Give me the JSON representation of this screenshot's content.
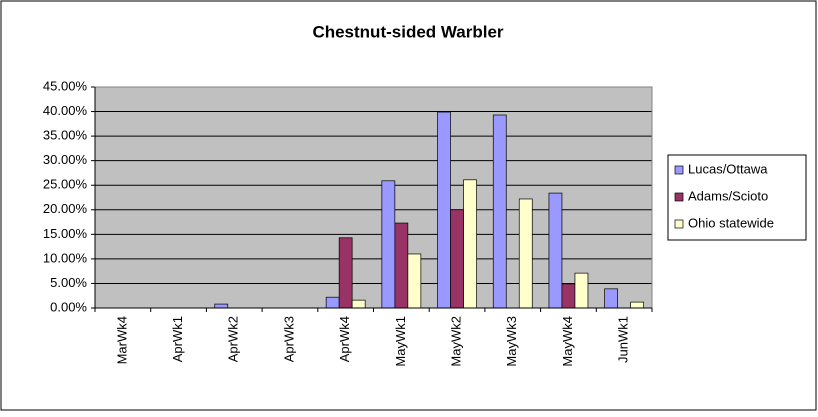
{
  "chart_data": {
    "type": "bar",
    "title": "Chestnut-sided Warbler",
    "categories": [
      "MarWk4",
      "AprWk1",
      "AprWk2",
      "AprWk3",
      "AprWk4",
      "MayWk1",
      "MayWk2",
      "MayWk3",
      "MayWk4",
      "JunWk1"
    ],
    "series": [
      {
        "name": "Lucas/Ottawa",
        "color": "#9999ff",
        "values": [
          0,
          0,
          0.8,
          0,
          2.2,
          25.9,
          39.9,
          39.3,
          23.4,
          3.9
        ]
      },
      {
        "name": "Adams/Scioto",
        "color": "#993366",
        "values": [
          0,
          0,
          0,
          0,
          14.3,
          17.3,
          20,
          0,
          4.9,
          0
        ]
      },
      {
        "name": "Ohio statewide",
        "color": "#ffffcc",
        "values": [
          0,
          0,
          0,
          0,
          1.6,
          11,
          26.1,
          22.2,
          7.1,
          1.2
        ]
      }
    ],
    "ylim": [
      0,
      45
    ],
    "yticks": [
      {
        "value": 0,
        "label": "0.00%"
      },
      {
        "value": 5,
        "label": "5.00%"
      },
      {
        "value": 10,
        "label": "10.00%"
      },
      {
        "value": 15,
        "label": "15.00%"
      },
      {
        "value": 20,
        "label": "20.00%"
      },
      {
        "value": 25,
        "label": "25.00%"
      },
      {
        "value": 30,
        "label": "30.00%"
      },
      {
        "value": 35,
        "label": "35.00%"
      },
      {
        "value": 40,
        "label": "40.00%"
      },
      {
        "value": 45,
        "label": "45.00%"
      }
    ],
    "grid": true,
    "legend": "right"
  }
}
